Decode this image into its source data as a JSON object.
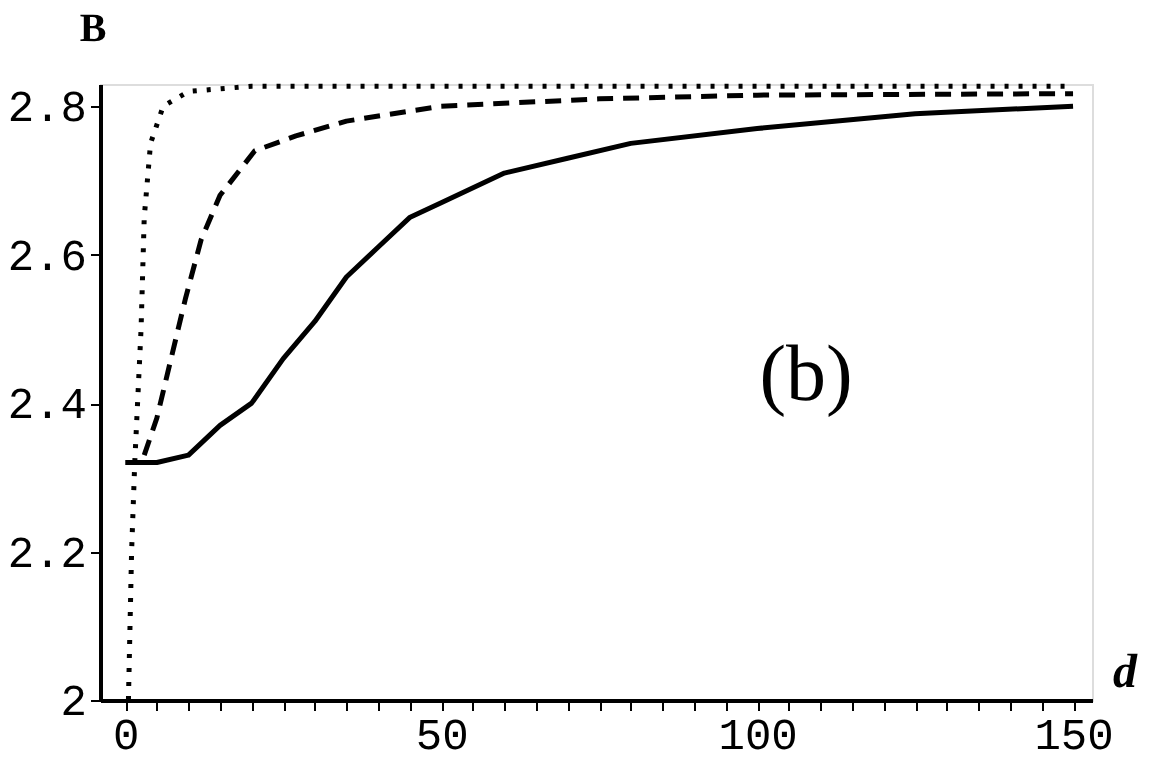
{
  "chart_data": {
    "type": "line",
    "xlabel": "d",
    "ylabel": "B",
    "annotations": [
      "(b)"
    ],
    "xlim": [
      -4,
      153
    ],
    "ylim": [
      2,
      2.83
    ],
    "xticks": [
      0,
      {
        "value": 5,
        "label": null
      },
      {
        "value": 10,
        "label": null
      },
      {
        "value": 15,
        "label": null
      },
      {
        "value": 20,
        "label": null
      },
      {
        "value": 25,
        "label": null
      },
      {
        "value": 30,
        "label": null
      },
      {
        "value": 35,
        "label": null
      },
      {
        "value": 40,
        "label": null
      },
      {
        "value": 45,
        "label": null
      },
      50,
      {
        "value": 55,
        "label": null
      },
      {
        "value": 60,
        "label": null
      },
      {
        "value": 65,
        "label": null
      },
      {
        "value": 70,
        "label": null
      },
      {
        "value": 75,
        "label": null
      },
      {
        "value": 80,
        "label": null
      },
      {
        "value": 85,
        "label": null
      },
      {
        "value": 90,
        "label": null
      },
      {
        "value": 95,
        "label": null
      },
      100,
      {
        "value": 105,
        "label": null
      },
      {
        "value": 110,
        "label": null
      },
      {
        "value": 115,
        "label": null
      },
      {
        "value": 120,
        "label": null
      },
      {
        "value": 125,
        "label": null
      },
      {
        "value": 130,
        "label": null
      },
      {
        "value": 135,
        "label": null
      },
      {
        "value": 140,
        "label": null
      },
      {
        "value": 145,
        "label": null
      },
      150
    ],
    "yticks": [
      2,
      2.2,
      2.4,
      2.6,
      2.8
    ],
    "grid": false,
    "legend": false,
    "marker": "none",
    "series": [
      {
        "color": "#000000",
        "line_style": "solid",
        "x": [
          0,
          5,
          10,
          15,
          20,
          25,
          30,
          35,
          40,
          45,
          50,
          60,
          70,
          80,
          100,
          125,
          150
        ],
        "values": [
          2.32,
          2.32,
          2.33,
          2.37,
          2.4,
          2.46,
          2.51,
          2.57,
          2.61,
          2.65,
          2.67,
          2.71,
          2.73,
          2.75,
          2.77,
          2.79,
          2.8
        ]
      },
      {
        "color": "#000000",
        "line_style": "dashed",
        "x": [
          3,
          5,
          9.5,
          12,
          15,
          20.5,
          27,
          35,
          50,
          75,
          100,
          150
        ],
        "values": [
          2.33,
          2.38,
          2.54,
          2.62,
          2.68,
          2.74,
          2.76,
          2.78,
          2.8,
          2.81,
          2.815,
          2.817
        ]
      },
      {
        "color": "#000000",
        "line_style": "dotted",
        "x": [
          0.5,
          1,
          1.5,
          2.5,
          3,
          4,
          6,
          10,
          20,
          150
        ],
        "values": [
          2.0,
          2.2,
          2.32,
          2.5,
          2.65,
          2.75,
          2.8,
          2.82,
          2.827,
          2.827
        ]
      }
    ]
  }
}
